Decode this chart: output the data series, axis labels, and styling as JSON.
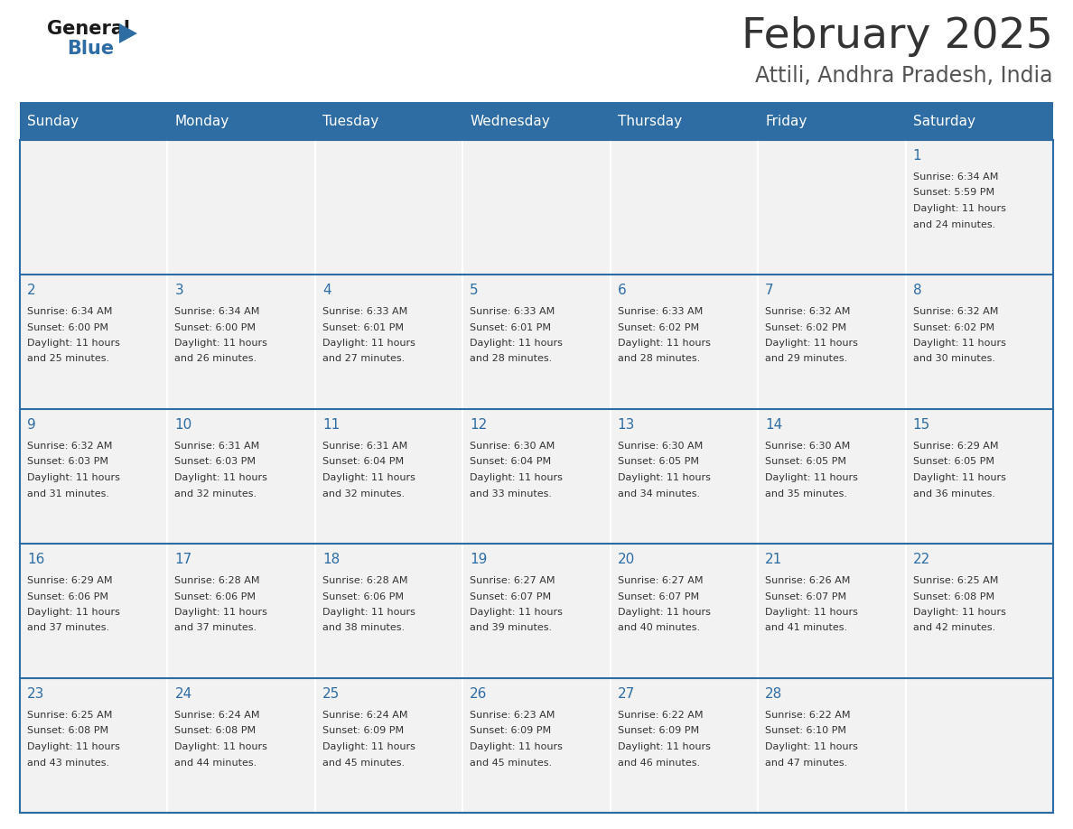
{
  "title": "February 2025",
  "subtitle": "Attili, Andhra Pradesh, India",
  "days_of_week": [
    "Sunday",
    "Monday",
    "Tuesday",
    "Wednesday",
    "Thursday",
    "Friday",
    "Saturday"
  ],
  "header_bg": "#2E6DA4",
  "header_text_color": "#FFFFFF",
  "cell_bg": "#F2F2F2",
  "cell_border_color": "#2E6DA4",
  "day_num_color": "#2E6DA4",
  "info_text_color": "#333333",
  "title_color": "#333333",
  "subtitle_color": "#555555",
  "logo_general_color": "#1a1a1a",
  "logo_blue_color": "#2E6DA4",
  "fig_width": 11.88,
  "fig_height": 9.18,
  "dpi": 100,
  "calendar_data": [
    {
      "day": 1,
      "col": 6,
      "row": 0,
      "sunrise": "6:34 AM",
      "sunset": "5:59 PM",
      "daylight_hours": 11,
      "daylight_minutes": 24
    },
    {
      "day": 2,
      "col": 0,
      "row": 1,
      "sunrise": "6:34 AM",
      "sunset": "6:00 PM",
      "daylight_hours": 11,
      "daylight_minutes": 25
    },
    {
      "day": 3,
      "col": 1,
      "row": 1,
      "sunrise": "6:34 AM",
      "sunset": "6:00 PM",
      "daylight_hours": 11,
      "daylight_minutes": 26
    },
    {
      "day": 4,
      "col": 2,
      "row": 1,
      "sunrise": "6:33 AM",
      "sunset": "6:01 PM",
      "daylight_hours": 11,
      "daylight_minutes": 27
    },
    {
      "day": 5,
      "col": 3,
      "row": 1,
      "sunrise": "6:33 AM",
      "sunset": "6:01 PM",
      "daylight_hours": 11,
      "daylight_minutes": 28
    },
    {
      "day": 6,
      "col": 4,
      "row": 1,
      "sunrise": "6:33 AM",
      "sunset": "6:02 PM",
      "daylight_hours": 11,
      "daylight_minutes": 28
    },
    {
      "day": 7,
      "col": 5,
      "row": 1,
      "sunrise": "6:32 AM",
      "sunset": "6:02 PM",
      "daylight_hours": 11,
      "daylight_minutes": 29
    },
    {
      "day": 8,
      "col": 6,
      "row": 1,
      "sunrise": "6:32 AM",
      "sunset": "6:02 PM",
      "daylight_hours": 11,
      "daylight_minutes": 30
    },
    {
      "day": 9,
      "col": 0,
      "row": 2,
      "sunrise": "6:32 AM",
      "sunset": "6:03 PM",
      "daylight_hours": 11,
      "daylight_minutes": 31
    },
    {
      "day": 10,
      "col": 1,
      "row": 2,
      "sunrise": "6:31 AM",
      "sunset": "6:03 PM",
      "daylight_hours": 11,
      "daylight_minutes": 32
    },
    {
      "day": 11,
      "col": 2,
      "row": 2,
      "sunrise": "6:31 AM",
      "sunset": "6:04 PM",
      "daylight_hours": 11,
      "daylight_minutes": 32
    },
    {
      "day": 12,
      "col": 3,
      "row": 2,
      "sunrise": "6:30 AM",
      "sunset": "6:04 PM",
      "daylight_hours": 11,
      "daylight_minutes": 33
    },
    {
      "day": 13,
      "col": 4,
      "row": 2,
      "sunrise": "6:30 AM",
      "sunset": "6:05 PM",
      "daylight_hours": 11,
      "daylight_minutes": 34
    },
    {
      "day": 14,
      "col": 5,
      "row": 2,
      "sunrise": "6:30 AM",
      "sunset": "6:05 PM",
      "daylight_hours": 11,
      "daylight_minutes": 35
    },
    {
      "day": 15,
      "col": 6,
      "row": 2,
      "sunrise": "6:29 AM",
      "sunset": "6:05 PM",
      "daylight_hours": 11,
      "daylight_minutes": 36
    },
    {
      "day": 16,
      "col": 0,
      "row": 3,
      "sunrise": "6:29 AM",
      "sunset": "6:06 PM",
      "daylight_hours": 11,
      "daylight_minutes": 37
    },
    {
      "day": 17,
      "col": 1,
      "row": 3,
      "sunrise": "6:28 AM",
      "sunset": "6:06 PM",
      "daylight_hours": 11,
      "daylight_minutes": 37
    },
    {
      "day": 18,
      "col": 2,
      "row": 3,
      "sunrise": "6:28 AM",
      "sunset": "6:06 PM",
      "daylight_hours": 11,
      "daylight_minutes": 38
    },
    {
      "day": 19,
      "col": 3,
      "row": 3,
      "sunrise": "6:27 AM",
      "sunset": "6:07 PM",
      "daylight_hours": 11,
      "daylight_minutes": 39
    },
    {
      "day": 20,
      "col": 4,
      "row": 3,
      "sunrise": "6:27 AM",
      "sunset": "6:07 PM",
      "daylight_hours": 11,
      "daylight_minutes": 40
    },
    {
      "day": 21,
      "col": 5,
      "row": 3,
      "sunrise": "6:26 AM",
      "sunset": "6:07 PM",
      "daylight_hours": 11,
      "daylight_minutes": 41
    },
    {
      "day": 22,
      "col": 6,
      "row": 3,
      "sunrise": "6:25 AM",
      "sunset": "6:08 PM",
      "daylight_hours": 11,
      "daylight_minutes": 42
    },
    {
      "day": 23,
      "col": 0,
      "row": 4,
      "sunrise": "6:25 AM",
      "sunset": "6:08 PM",
      "daylight_hours": 11,
      "daylight_minutes": 43
    },
    {
      "day": 24,
      "col": 1,
      "row": 4,
      "sunrise": "6:24 AM",
      "sunset": "6:08 PM",
      "daylight_hours": 11,
      "daylight_minutes": 44
    },
    {
      "day": 25,
      "col": 2,
      "row": 4,
      "sunrise": "6:24 AM",
      "sunset": "6:09 PM",
      "daylight_hours": 11,
      "daylight_minutes": 45
    },
    {
      "day": 26,
      "col": 3,
      "row": 4,
      "sunrise": "6:23 AM",
      "sunset": "6:09 PM",
      "daylight_hours": 11,
      "daylight_minutes": 45
    },
    {
      "day": 27,
      "col": 4,
      "row": 4,
      "sunrise": "6:22 AM",
      "sunset": "6:09 PM",
      "daylight_hours": 11,
      "daylight_minutes": 46
    },
    {
      "day": 28,
      "col": 5,
      "row": 4,
      "sunrise": "6:22 AM",
      "sunset": "6:10 PM",
      "daylight_hours": 11,
      "daylight_minutes": 47
    }
  ]
}
